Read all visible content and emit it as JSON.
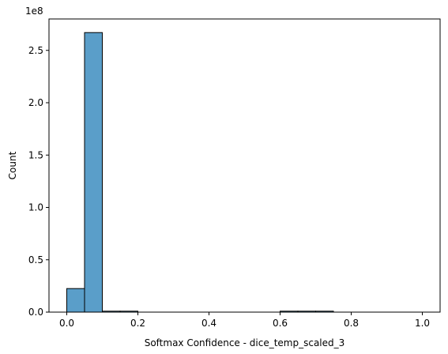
{
  "chart_data": {
    "type": "bar",
    "title": "",
    "xlabel": "Softmax Confidence - dice_temp_scaled_3",
    "ylabel": "Count",
    "offset_label": "1e8",
    "xlim": [
      -0.05,
      1.05
    ],
    "ylim": [
      0,
      280000000.0
    ],
    "x_ticks": [
      0.0,
      0.2,
      0.4,
      0.6,
      0.8,
      1.0
    ],
    "x_tick_labels": [
      "0.0",
      "0.2",
      "0.4",
      "0.6",
      "0.8",
      "1.0"
    ],
    "y_ticks": [
      0,
      50000000,
      100000000,
      150000000,
      200000000,
      250000000
    ],
    "y_tick_labels": [
      "0.0",
      "0.5",
      "1.0",
      "1.5",
      "2.0",
      "2.5"
    ],
    "bin_width": 0.05,
    "bins": [
      {
        "x0": 0.0,
        "x1": 0.05,
        "count": 22500000
      },
      {
        "x0": 0.05,
        "x1": 0.1,
        "count": 267000000
      },
      {
        "x0": 0.1,
        "x1": 0.15,
        "count": 600000
      },
      {
        "x0": 0.15,
        "x1": 0.2,
        "count": 300000
      },
      {
        "x0": 0.2,
        "x1": 0.25,
        "count": 0
      },
      {
        "x0": 0.25,
        "x1": 0.3,
        "count": 0
      },
      {
        "x0": 0.3,
        "x1": 0.35,
        "count": 0
      },
      {
        "x0": 0.35,
        "x1": 0.4,
        "count": 0
      },
      {
        "x0": 0.4,
        "x1": 0.45,
        "count": 0
      },
      {
        "x0": 0.45,
        "x1": 0.5,
        "count": 0
      },
      {
        "x0": 0.5,
        "x1": 0.55,
        "count": 0
      },
      {
        "x0": 0.55,
        "x1": 0.6,
        "count": 0
      },
      {
        "x0": 0.6,
        "x1": 0.65,
        "count": 600000
      },
      {
        "x0": 0.65,
        "x1": 0.7,
        "count": 600000
      },
      {
        "x0": 0.7,
        "x1": 0.75,
        "count": 600000
      },
      {
        "x0": 0.75,
        "x1": 0.8,
        "count": 0
      },
      {
        "x0": 0.8,
        "x1": 0.85,
        "count": 0
      },
      {
        "x0": 0.85,
        "x1": 0.9,
        "count": 0
      },
      {
        "x0": 0.9,
        "x1": 0.95,
        "count": 0
      },
      {
        "x0": 0.95,
        "x1": 1.0,
        "count": 0
      }
    ],
    "grid": false,
    "colors": {
      "bar_fill": "#5a9ec9",
      "bar_edge": "#000000",
      "axis": "#000000"
    }
  }
}
